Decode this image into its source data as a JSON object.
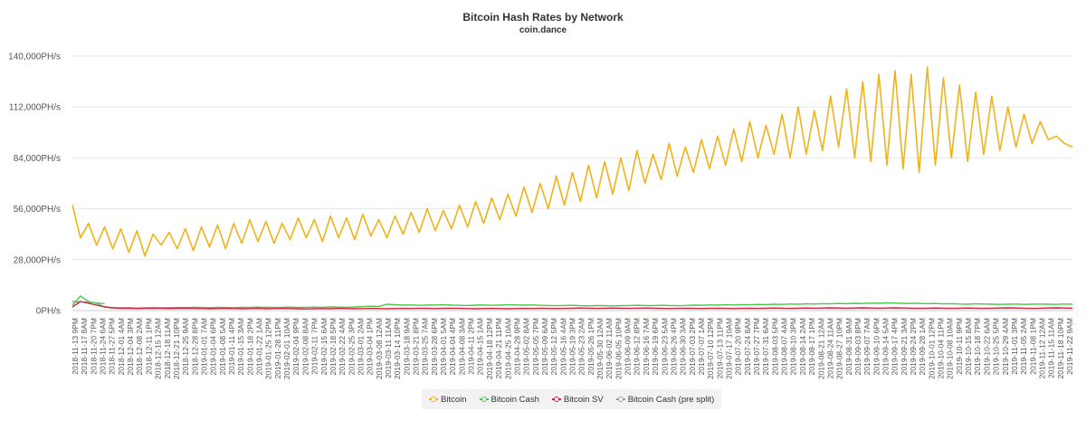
{
  "chart_data": {
    "type": "line",
    "title": "Bitcoin Hash Rates by Network",
    "subtitle": "coin.dance",
    "xlabel": "",
    "ylabel": "",
    "ylim": [
      0,
      140000
    ],
    "y_ticks": [
      "0PH/s",
      "28,000PH/s",
      "56,000PH/s",
      "84,000PH/s",
      "112,000PH/s",
      "140,000PH/s"
    ],
    "x_tick_labels": [
      "2018-11-13 9PM",
      "2018-11-17 8AM",
      "2018-11-20 7PM",
      "2018-11-24 6AM",
      "2018-11-27 5PM",
      "2018-12-01 4AM",
      "2018-12-04 3PM",
      "2018-12-08 2AM",
      "2018-12-11 1PM",
      "2018-12-15 12AM",
      "2018-12-18 11AM",
      "2018-12-21 10PM",
      "2018-12-25 9AM",
      "2018-12-28 8PM",
      "2019-01-01 7AM",
      "2019-01-04 6PM",
      "2019-01-08 5AM",
      "2019-01-11 4PM",
      "2019-01-15 3AM",
      "2019-01-18 2PM",
      "2019-01-22 1AM",
      "2019-01-25 12PM",
      "2019-01-28 11PM",
      "2019-02-01 10AM",
      "2019-02-04 9PM",
      "2019-02-08 8AM",
      "2019-02-11 7PM",
      "2019-02-15 6AM",
      "2019-02-18 5PM",
      "2019-02-22 4AM",
      "2019-02-25 3PM",
      "2019-03-01 2AM",
      "2019-03-04 1PM",
      "2019-03-08 12AM",
      "2019-03-11 11AM",
      "2019-03-14 10PM",
      "2019-03-18 9AM",
      "2019-03-21 8PM",
      "2019-03-25 7AM",
      "2019-03-28 6PM",
      "2019-04-01 5AM",
      "2019-04-04 4PM",
      "2019-04-08 3AM",
      "2019-04-11 2PM",
      "2019-04-15 1AM",
      "2019-04-18 12PM",
      "2019-04-21 11PM",
      "2019-04-25 10AM",
      "2019-04-28 9PM",
      "2019-05-02 8AM",
      "2019-05-05 7PM",
      "2019-05-09 6AM",
      "2019-05-12 5PM",
      "2019-05-16 4AM",
      "2019-05-19 3PM",
      "2019-05-23 2AM",
      "2019-05-26 1PM",
      "2019-05-30 12AM",
      "2019-06-02 11AM",
      "2019-06-05 10PM",
      "2019-06-09 9AM",
      "2019-06-12 8PM",
      "2019-06-16 7AM",
      "2019-06-19 6PM",
      "2019-06-23 5AM",
      "2019-06-26 4PM",
      "2019-06-30 3AM",
      "2019-07-03 2PM",
      "2019-07-07 1AM",
      "2019-07-10 12PM",
      "2019-07-13 11PM",
      "2019-07-17 10AM",
      "2019-07-20 9PM",
      "2019-07-24 8AM",
      "2019-07-27 7PM",
      "2019-07-31 6AM",
      "2019-08-03 5PM",
      "2019-08-07 4AM",
      "2019-08-10 3PM",
      "2019-08-14 2AM",
      "2019-08-17 1PM",
      "2019-08-21 12AM",
      "2019-08-24 11AM",
      "2019-08-27 10PM",
      "2019-08-31 9AM",
      "2019-09-03 8PM",
      "2019-09-07 7AM",
      "2019-09-10 6PM",
      "2019-09-14 5AM",
      "2019-09-17 4PM",
      "2019-09-21 3AM",
      "2019-09-24 2PM",
      "2019-09-28 1AM",
      "2019-10-01 12PM",
      "2019-10-04 11PM",
      "2019-10-08 10AM",
      "2019-10-11 9PM",
      "2019-10-15 8AM",
      "2019-10-18 7PM",
      "2019-10-22 6AM",
      "2019-10-25 5PM",
      "2019-10-29 4AM",
      "2019-11-01 3PM",
      "2019-11-05 2AM",
      "2019-11-08 1PM",
      "2019-11-12 12AM",
      "2019-11-15 11AM",
      "2019-11-18 10PM",
      "2019-11-22 9AM"
    ],
    "series": [
      {
        "name": "Bitcoin",
        "color": "#f0b21b",
        "values": [
          58000,
          40000,
          48000,
          36000,
          46000,
          34000,
          45000,
          32000,
          44000,
          30000,
          42000,
          36000,
          43000,
          34000,
          45000,
          33000,
          46000,
          35000,
          47000,
          34000,
          48000,
          37000,
          50000,
          38000,
          49000,
          37000,
          48000,
          39000,
          51000,
          40000,
          50000,
          38000,
          52000,
          40000,
          51000,
          39000,
          53000,
          41000,
          50000,
          40000,
          52000,
          42000,
          54000,
          43000,
          56000,
          44000,
          55000,
          45000,
          58000,
          46000,
          60000,
          48000,
          62000,
          50000,
          64000,
          52000,
          68000,
          54000,
          70000,
          56000,
          74000,
          58000,
          76000,
          60000,
          80000,
          62000,
          82000,
          64000,
          84000,
          66000,
          88000,
          70000,
          86000,
          72000,
          92000,
          74000,
          90000,
          76000,
          94000,
          78000,
          96000,
          80000,
          100000,
          82000,
          104000,
          84000,
          102000,
          86000,
          108000,
          84000,
          112000,
          86000,
          110000,
          88000,
          118000,
          90000,
          122000,
          84000,
          126000,
          82000,
          130000,
          80000,
          132000,
          78000,
          130000,
          76000,
          134000,
          80000,
          128000,
          84000,
          124000,
          82000,
          120000,
          86000,
          118000,
          88000,
          112000,
          90000,
          108000,
          92000,
          104000,
          94000,
          96000,
          92000,
          90000
        ]
      },
      {
        "name": "Bitcoin Cash",
        "color": "#49c94b",
        "values": [
          3000,
          8000,
          5000,
          4000,
          2000,
          1500,
          1500,
          1600,
          1400,
          1500,
          1600,
          1500,
          1600,
          1700,
          1600,
          1800,
          1700,
          1600,
          1800,
          1700,
          1600,
          1800,
          1700,
          1900,
          1800,
          1700,
          1800,
          1900,
          1700,
          1800,
          1900,
          1800,
          2000,
          1900,
          1800,
          2000,
          2200,
          2400,
          2300,
          3500,
          3200,
          3000,
          3100,
          2900,
          3000,
          3100,
          3200,
          3000,
          2900,
          2800,
          3000,
          3100,
          2900,
          3000,
          3200,
          3100,
          3000,
          3100,
          2900,
          2800,
          2700,
          2800,
          2900,
          2700,
          2600,
          2800,
          2700,
          2600,
          2700,
          2800,
          2900,
          2800,
          2700,
          2900,
          2800,
          2700,
          2800,
          3000,
          2900,
          3100,
          3000,
          3200,
          3100,
          3300,
          3200,
          3400,
          3300,
          3500,
          3400,
          3600,
          3500,
          3700,
          3600,
          3800,
          3700,
          3900,
          3800,
          4000,
          3900,
          4100,
          4000,
          4200,
          4100,
          4000,
          3900,
          4000,
          3800,
          3900,
          3700,
          3800,
          3600,
          3500,
          3700,
          3600,
          3500,
          3400,
          3500,
          3600,
          3400,
          3500,
          3600,
          3500,
          3400,
          3600,
          3500
        ]
      },
      {
        "name": "Bitcoin SV",
        "color": "#d4213d",
        "values": [
          2000,
          5000,
          4000,
          3000,
          2000,
          1500,
          1200,
          1300,
          1100,
          1200,
          1300,
          1200,
          1100,
          1200,
          1300,
          1200,
          1100,
          1000,
          1100,
          1200,
          1100,
          1000,
          1100,
          1200,
          1000,
          1100,
          1200,
          1100,
          1000,
          900,
          1000,
          1100,
          1000,
          1200,
          1100,
          1000,
          1100,
          1200,
          1100,
          1000,
          1100,
          1200,
          1100,
          1300,
          1200,
          1100,
          1200,
          1300,
          1200,
          1100,
          1000,
          1100,
          1200,
          1100,
          1000,
          1100,
          1200,
          1100,
          1300,
          1200,
          1100,
          1200,
          1300,
          1400,
          1300,
          1200,
          1300,
          1400,
          1300,
          1200,
          1300,
          1400,
          1300,
          1200,
          1100,
          1200,
          1300,
          1200,
          1100,
          1200,
          1300,
          1200,
          1100,
          1200,
          1300,
          1200,
          1300,
          1400,
          1300,
          1200,
          1300,
          1400,
          1300,
          1400,
          1500,
          1400,
          1300,
          1400,
          1500,
          1400,
          1300,
          1400,
          1500,
          1400,
          1300,
          1200,
          1300,
          1400,
          1300,
          1200,
          1300,
          1400,
          1300,
          1200,
          1300,
          1400,
          1500,
          1400,
          1300,
          1200,
          1300,
          1400,
          1500,
          1400,
          1300
        ]
      },
      {
        "name": "Bitcoin Cash (pre split)",
        "color": "#999999",
        "values": [
          5000,
          4800,
          4600,
          4200,
          3800
        ]
      }
    ],
    "legend_position": "bottom-center",
    "grid": true
  }
}
